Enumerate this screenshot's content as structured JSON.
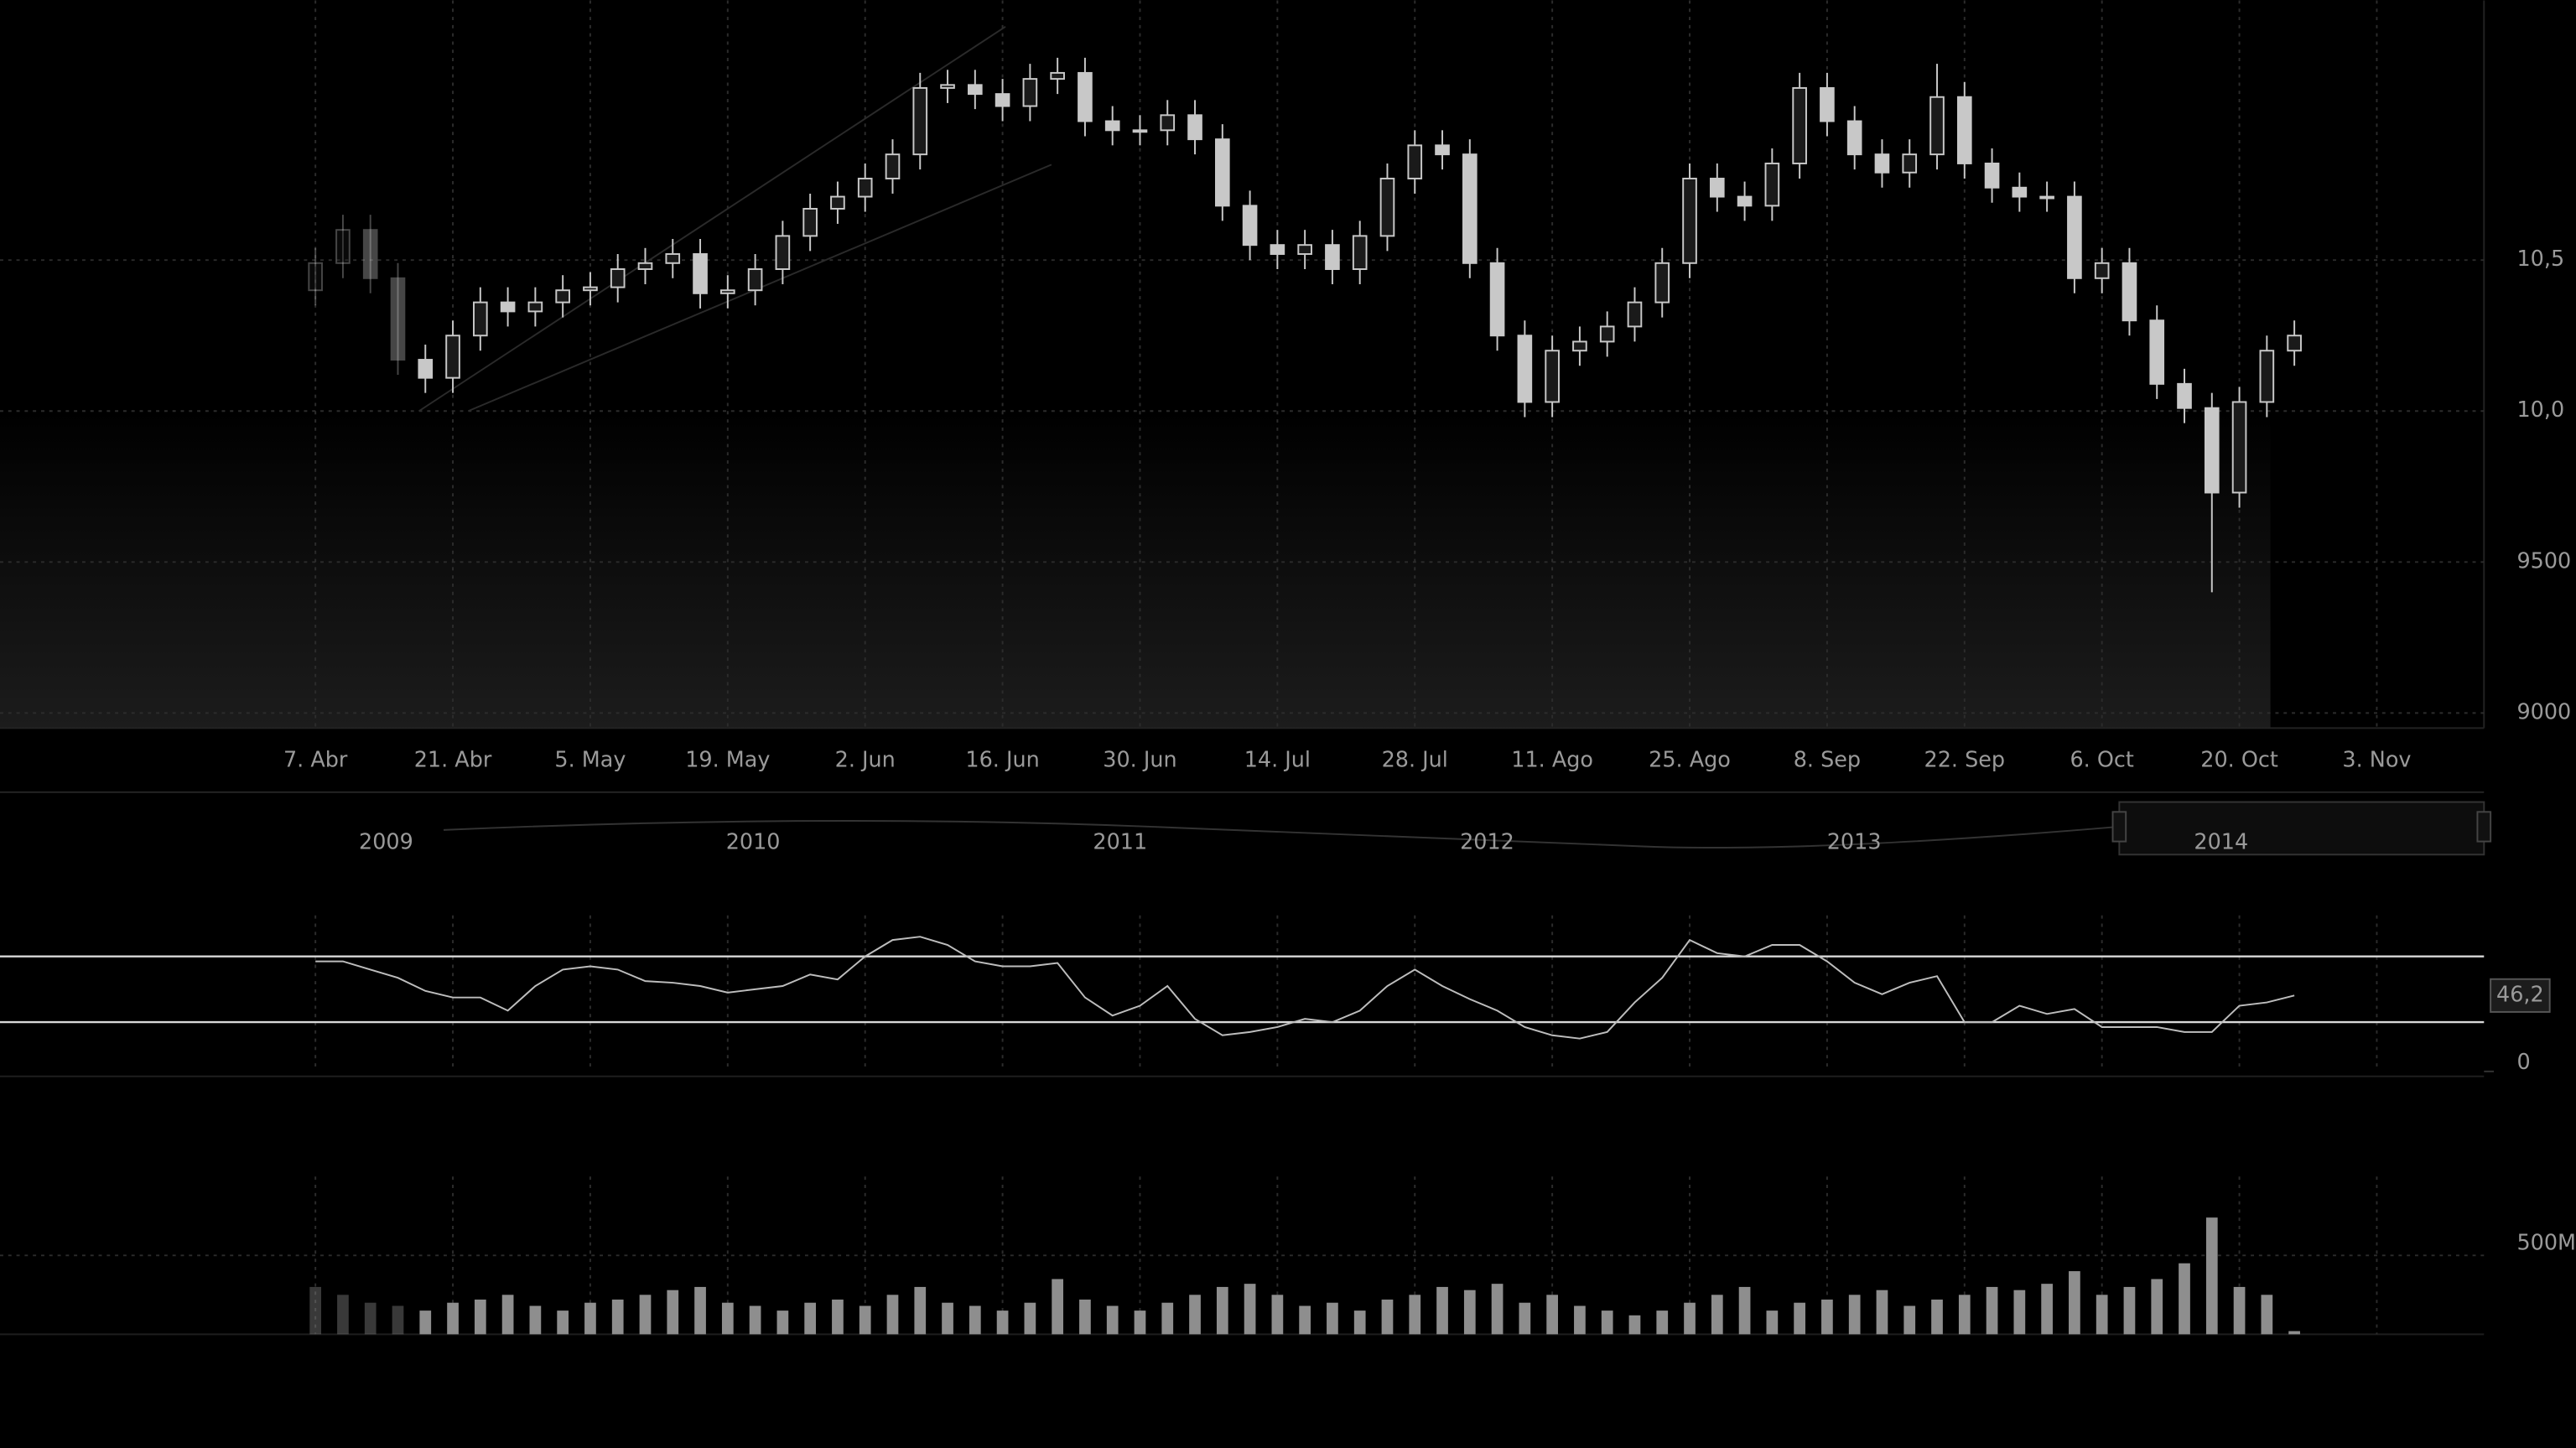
{
  "chart_data": [
    {
      "type": "candlestick",
      "categories": [
        "7. Abr",
        null,
        null,
        null,
        null,
        "21. Abr",
        null,
        null,
        null,
        null,
        "5. May",
        null,
        null,
        null,
        null,
        "19. May",
        null,
        null,
        null,
        null,
        "2. Jun",
        null,
        null,
        null,
        null,
        "16. Jun",
        null,
        null,
        null,
        null,
        "30. Jun",
        null,
        null,
        null,
        null,
        "14. Jul",
        null,
        null,
        null,
        null,
        "28. Jul",
        null,
        null,
        null,
        null,
        "11. Ago",
        null,
        null,
        null,
        null,
        "25. Ago",
        null,
        null,
        null,
        null,
        "8. Sep",
        null,
        null,
        null,
        null,
        "22. Sep",
        null,
        null,
        null,
        null,
        "6. Oct",
        null,
        null,
        null,
        null,
        "20. Oct",
        null,
        null,
        null,
        null,
        "3. Nov"
      ],
      "open": [
        10400,
        10490,
        10600,
        10440,
        10170,
        10110,
        10250,
        10360,
        10330,
        10360,
        10400,
        10410,
        10470,
        10490,
        10520,
        10390,
        10400,
        10470,
        10580,
        10670,
        10710,
        10770,
        10850,
        11070,
        11080,
        11050,
        11010,
        11100,
        11120,
        10960,
        10930,
        10930,
        10980,
        10900,
        10680,
        10550,
        10520,
        10550,
        10470,
        10580,
        10770,
        10880,
        10850,
        10490,
        10250,
        10030,
        10200,
        10230,
        10280,
        10360,
        10490,
        10770,
        10710,
        10680,
        10820,
        11070,
        10960,
        10850,
        10790,
        10850,
        11040,
        10820,
        10740,
        10710,
        10710,
        10440,
        10490,
        10300,
        10090,
        10010,
        9730,
        10030,
        10200,
        null,
        null,
        null
      ],
      "high": [
        10540,
        10650,
        10650,
        10490,
        10220,
        10300,
        10410,
        10410,
        10410,
        10450,
        10460,
        10520,
        10540,
        10570,
        10570,
        10450,
        10520,
        10630,
        10720,
        10760,
        10820,
        10900,
        11120,
        11130,
        11130,
        11100,
        11150,
        11170,
        11170,
        11010,
        10980,
        11030,
        11030,
        10950,
        10730,
        10600,
        10600,
        10600,
        10630,
        10820,
        10930,
        10930,
        10900,
        10540,
        10300,
        10250,
        10280,
        10330,
        10410,
        10540,
        10820,
        10820,
        10760,
        10870,
        11120,
        11120,
        11010,
        10900,
        10900,
        11150,
        11090,
        10870,
        10790,
        10760,
        10760,
        10540,
        10540,
        10350,
        10140,
        10060,
        10080,
        10250,
        10300,
        null,
        null,
        null
      ],
      "low": [
        10350,
        10440,
        10390,
        10120,
        10060,
        10060,
        10200,
        10280,
        10280,
        10310,
        10350,
        10360,
        10420,
        10440,
        10340,
        10340,
        10350,
        10420,
        10530,
        10620,
        10660,
        10720,
        10800,
        11020,
        11000,
        10960,
        10960,
        11050,
        10910,
        10880,
        10880,
        10880,
        10850,
        10630,
        10500,
        10470,
        10470,
        10420,
        10420,
        10530,
        10720,
        10800,
        10440,
        10200,
        9980,
        9980,
        10150,
        10180,
        10230,
        10310,
        10440,
        10660,
        10630,
        10630,
        10770,
        10910,
        10800,
        10740,
        10740,
        10800,
        10770,
        10690,
        10660,
        10660,
        10390,
        10390,
        10250,
        10040,
        9960,
        9400,
        9680,
        9980,
        10150,
        null,
        null,
        null
      ],
      "close": [
        10490,
        10600,
        10440,
        10170,
        10110,
        10250,
        10360,
        10330,
        10360,
        10400,
        10410,
        10470,
        10490,
        10520,
        10390,
        10400,
        10470,
        10580,
        10670,
        10710,
        10770,
        10850,
        11070,
        11080,
        11050,
        11010,
        11100,
        11120,
        10960,
        10930,
        10930,
        10980,
        10900,
        10680,
        10550,
        10520,
        10550,
        10470,
        10580,
        10770,
        10880,
        10850,
        10490,
        10250,
        10030,
        10200,
        10230,
        10280,
        10360,
        10490,
        10770,
        10710,
        10680,
        10820,
        11070,
        10960,
        10850,
        10790,
        10850,
        11040,
        10820,
        10740,
        10710,
        10710,
        10440,
        10490,
        10300,
        10090,
        10010,
        9730,
        10030,
        10200,
        10250,
        null,
        null,
        null
      ],
      "color": "#c8c8c8",
      "ylim": [
        8950,
        11360
      ],
      "yticks": [
        9000,
        9500,
        {
          "value": 10000,
          "label": "10,0"
        },
        {
          "value": 10500,
          "label": "10,5"
        }
      ],
      "grid": true,
      "navigator": {
        "categories": [
          "2009",
          "2010",
          "2011",
          "2012",
          "2013",
          "2014"
        ]
      }
    },
    {
      "type": "line",
      "values": [
        67,
        67,
        62,
        57,
        49,
        45,
        45,
        37,
        52,
        62,
        64,
        62,
        55,
        54,
        52,
        48,
        50,
        52,
        59,
        56,
        70,
        80,
        82,
        77,
        67,
        64,
        64,
        66,
        45,
        34,
        40,
        52,
        32,
        22,
        24,
        27,
        32,
        30,
        37,
        52,
        62,
        52,
        44,
        37,
        27,
        22,
        20,
        24,
        42,
        57,
        80,
        72,
        70,
        77,
        77,
        67,
        54,
        47,
        54,
        58,
        30,
        30,
        40,
        35,
        38,
        27,
        27,
        27,
        24,
        24,
        40,
        42,
        46.2
      ],
      "value_labels": [
        null,
        null,
        null,
        null,
        null,
        null,
        null,
        null,
        null,
        null,
        null,
        null,
        null,
        null,
        null,
        null,
        null,
        null,
        null,
        null,
        null,
        null,
        null,
        null,
        null,
        null,
        null,
        null,
        null,
        null,
        null,
        null,
        null,
        null,
        null,
        null,
        null,
        null,
        null,
        null,
        null,
        null,
        null,
        null,
        null,
        null,
        null,
        null,
        null,
        null,
        null,
        null,
        null,
        null,
        null,
        null,
        null,
        null,
        null,
        null,
        null,
        null,
        null,
        null,
        null,
        null,
        null,
        null,
        null,
        null,
        null,
        null,
        "46,2"
      ],
      "color": "#bdbdbd",
      "ylim": [
        0,
        100
      ],
      "yticks": [
        0
      ],
      "reference_lines": [
        30,
        70
      ]
    },
    {
      "type": "bar",
      "values": [
        300000000,
        250000000,
        200000000,
        180000000,
        150000000,
        200000000,
        220000000,
        250000000,
        180000000,
        150000000,
        200000000,
        220000000,
        250000000,
        280000000,
        300000000,
        200000000,
        180000000,
        150000000,
        200000000,
        220000000,
        180000000,
        250000000,
        300000000,
        200000000,
        180000000,
        150000000,
        200000000,
        350000000,
        220000000,
        180000000,
        150000000,
        200000000,
        250000000,
        300000000,
        320000000,
        250000000,
        180000000,
        200000000,
        150000000,
        220000000,
        250000000,
        300000000,
        280000000,
        320000000,
        200000000,
        250000000,
        180000000,
        150000000,
        120000000,
        150000000,
        200000000,
        250000000,
        300000000,
        150000000,
        200000000,
        220000000,
        250000000,
        280000000,
        180000000,
        220000000,
        250000000,
        300000000,
        280000000,
        320000000,
        400000000,
        250000000,
        300000000,
        350000000,
        450000000,
        740000000,
        300000000,
        250000000,
        20000000
      ],
      "color": "#8e8e8e",
      "ylim": [
        0,
        1000000000
      ],
      "yticks": [
        {
          "value": 500000000,
          "label": "500M"
        }
      ],
      "grid": true
    }
  ]
}
